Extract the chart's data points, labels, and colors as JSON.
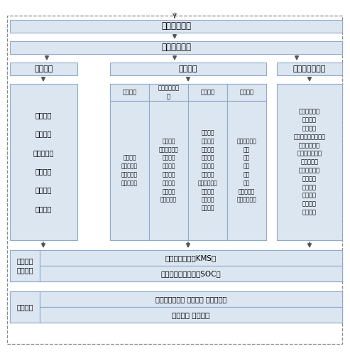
{
  "box_fill": "#dce6f1",
  "box_edge": "#8eaacc",
  "bg_color": "#ffffff",
  "font_color": "#000000",
  "row1_label": "信息安全目标",
  "row2_label": "信息安全需求",
  "row3_labels": [
    "管理体系",
    "技术体系",
    "服务与运行体系"
  ],
  "row4_left_label": "安全方针\n\n安全组织\n\n流程与规范\n\n管理制度\n\n资产管理\n\n人员管理",
  "row4_tech_labels": [
    "数据安全",
    "主机与应用安\n全",
    "网络安全",
    "物理安全"
  ],
  "row4_tech_content": [
    "内容安全\n数据完整性\n数据保密性\n备份与恢复",
    "入侵防护\n恶意代码防范\n资源控制\n安全审计\n身份认证\n访问控制\n代码安全\n通信保密性",
    "结构安全\n访问控制\n入侵防护\n安全审计\n负载均衡\n病毒防护\n内网安全防护\n访问控制\n行为管理\n通信保护",
    "电磁泄漏处理\n容错\n防火\n防水\n防雷\n防震\n温湿度控制\n电力供应措施"
  ],
  "row4_right_content": "安全监控巡检\n漏洞挖掘\n应急响应\n灾难备份及灾难恢复\n产品选型测试\n安全预警与通告\n安全运维管\n综合管理监控\n定期内审\n安全评估\n安全咨询\n安全培训\n售后服务",
  "row5_left_label": "全网基础\n安全平台",
  "row5_right1": "密钥管理系统（KMS）",
  "row5_right2": "集中安全管理系统（SOC）",
  "row6_left_label": "风险评估",
  "row6_right1": "资产识别与评估 威胁评估 脆弱性评估",
  "row6_right2": "风险分析 风险管理"
}
